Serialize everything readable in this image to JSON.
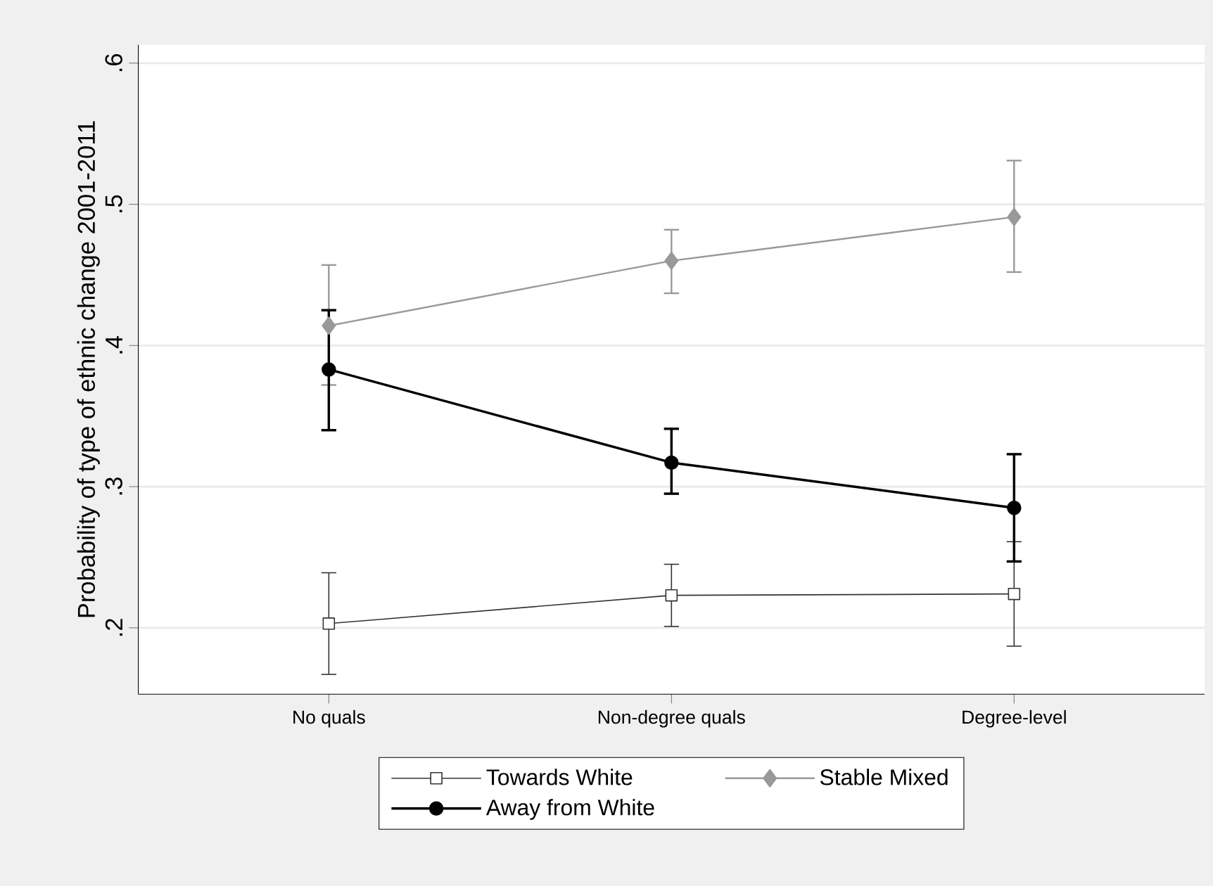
{
  "chart_data": {
    "type": "line",
    "ylabel": "Probability of type of ethnic change 2001-2011",
    "categories": [
      "No quals",
      "Non-degree quals",
      "Degree-level"
    ],
    "series": [
      {
        "name": "Towards White",
        "color": "#333333",
        "marker": "square",
        "values": [
          0.203,
          0.223,
          0.224
        ],
        "errors": [
          [
            0.167,
            0.239
          ],
          [
            0.201,
            0.245
          ],
          [
            0.187,
            0.261
          ]
        ]
      },
      {
        "name": "Stable Mixed",
        "color": "#999999",
        "marker": "diamond",
        "values": [
          0.414,
          0.46,
          0.491
        ],
        "errors": [
          [
            0.372,
            0.457
          ],
          [
            0.437,
            0.482
          ],
          [
            0.452,
            0.531
          ]
        ]
      },
      {
        "name": "Away from White",
        "color": "#000000",
        "marker": "circle",
        "values": [
          0.383,
          0.317,
          0.285
        ],
        "errors": [
          [
            0.34,
            0.425
          ],
          [
            0.295,
            0.341
          ],
          [
            0.247,
            0.323
          ]
        ]
      }
    ],
    "ylim": [
      0.153,
      0.613
    ],
    "yticks": [
      {
        "value": 0.2,
        "label": ".2"
      },
      {
        "value": 0.3,
        "label": ".3"
      },
      {
        "value": 0.4,
        "label": ".4"
      },
      {
        "value": 0.5,
        "label": ".5"
      },
      {
        "value": 0.6,
        "label": ".6"
      }
    ],
    "grid": "y",
    "legend": "bottom",
    "line_style": "solid"
  }
}
